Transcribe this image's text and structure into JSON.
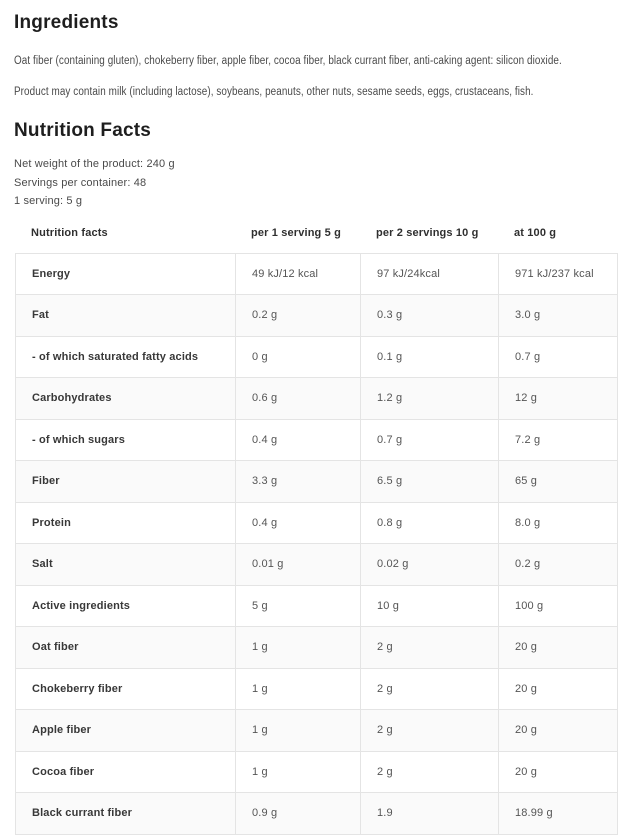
{
  "ingredients": {
    "title": "Ingredients",
    "description": "Oat fiber (containing gluten), chokeberry fiber, apple fiber, cocoa fiber, black currant fiber, anti-caking agent: silicon dioxide.",
    "allergen_note": "Product may contain milk (including lactose), soybeans, peanuts, other nuts, sesame seeds, eggs, crustaceans, fish."
  },
  "nutrition": {
    "title": "Nutrition Facts",
    "net_weight": "Net weight of the product: 240 g",
    "servings_per_container": "Servings per container: 48",
    "serving_size": "1 serving: 5 g",
    "table": {
      "headers": [
        "Nutrition facts",
        "per 1 serving 5 g",
        "per 2 servings 10 g",
        "at 100 g"
      ],
      "rows": [
        {
          "label": "Energy",
          "per_serving": "49 kJ/12 kcal",
          "per_two_servings": "97 kJ/24kcal",
          "per_100g": "971 kJ/237 kcal"
        },
        {
          "label": "Fat",
          "per_serving": "0.2 g",
          "per_two_servings": "0.3 g",
          "per_100g": "3.0 g"
        },
        {
          "label": "- of which saturated fatty acids",
          "per_serving": "0 g",
          "per_two_servings": "0.1 g",
          "per_100g": "0.7 g"
        },
        {
          "label": "Carbohydrates",
          "per_serving": "0.6 g",
          "per_two_servings": "1.2 g",
          "per_100g": "12 g"
        },
        {
          "label": "- of which sugars",
          "per_serving": "0.4 g",
          "per_two_servings": "0.7 g",
          "per_100g": "7.2 g"
        },
        {
          "label": "Fiber",
          "per_serving": "3.3 g",
          "per_two_servings": "6.5 g",
          "per_100g": "65 g"
        },
        {
          "label": "Protein",
          "per_serving": "0.4 g",
          "per_two_servings": "0.8 g",
          "per_100g": "8.0 g"
        },
        {
          "label": "Salt",
          "per_serving": "0.01 g",
          "per_two_servings": "0.02 g",
          "per_100g": "0.2 g"
        },
        {
          "label": "Active ingredients",
          "per_serving": "5 g",
          "per_two_servings": "10 g",
          "per_100g": "100 g"
        },
        {
          "label": "Oat fiber",
          "per_serving": "1 g",
          "per_two_servings": "2 g",
          "per_100g": "20 g"
        },
        {
          "label": "Chokeberry fiber",
          "per_serving": "1 g",
          "per_two_servings": "2 g",
          "per_100g": "20 g"
        },
        {
          "label": "Apple fiber",
          "per_serving": "1 g",
          "per_two_servings": "2 g",
          "per_100g": "20 g"
        },
        {
          "label": "Cocoa fiber",
          "per_serving": "1 g",
          "per_two_servings": "2 g",
          "per_100g": "20 g"
        },
        {
          "label": "Black currant fiber",
          "per_serving": "0.9 g",
          "per_two_servings": "1.9",
          "per_100g": "18.99 g"
        }
      ]
    }
  },
  "colors": {
    "heading_text": "#1e1e1e",
    "body_text": "#4a4a4a",
    "label_text": "#383838",
    "value_text": "#555555",
    "table_border": "#e4e4e4",
    "row_alt_background": "#fafafa",
    "page_background": "#ffffff"
  }
}
